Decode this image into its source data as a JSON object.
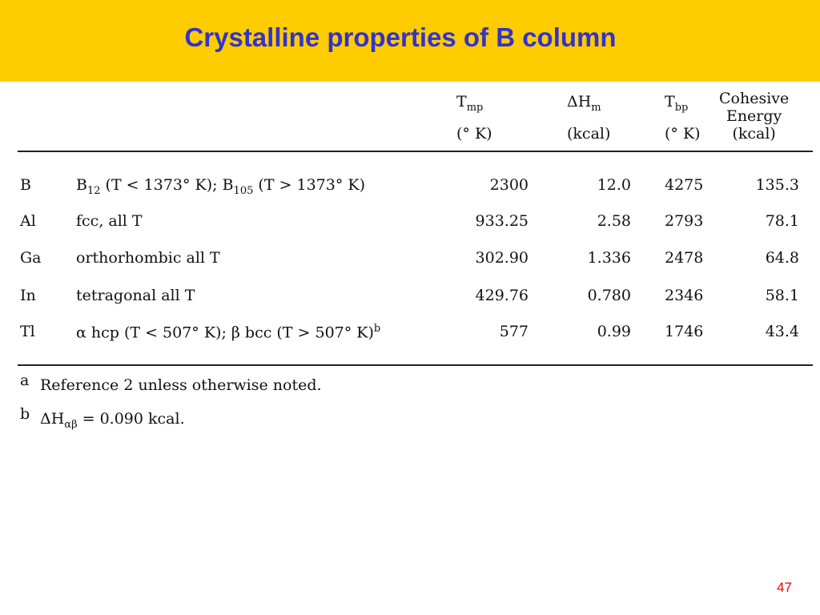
{
  "header": {
    "title": "Crystalline properties of B column"
  },
  "table": {
    "columns": [
      {
        "symbol": "T",
        "sub": "mp",
        "unit": "(° K)"
      },
      {
        "symbol": "ΔH",
        "sub": "m",
        "unit": "(kcal)"
      },
      {
        "symbol": "T",
        "sub": "bp",
        "unit": "(° K)"
      },
      {
        "lines": [
          "Cohesive",
          "Energy"
        ],
        "unit": "(kcal)"
      }
    ],
    "rows": [
      {
        "element": "B",
        "description": [
          "B",
          {
            "sub": "12"
          },
          " (T < 1373° K); B",
          {
            "sub": "105"
          },
          " (T > 1373° K)"
        ],
        "values": [
          "2300",
          "12.0",
          "4275",
          "135.3"
        ]
      },
      {
        "element": "Al",
        "description": [
          "fcc, all T"
        ],
        "values": [
          "933.25",
          "2.58",
          "2793",
          "78.1"
        ]
      },
      {
        "element": "Ga",
        "description": [
          "orthorhombic all T"
        ],
        "values": [
          "302.90",
          "1.336",
          "2478",
          "64.8"
        ]
      },
      {
        "element": "In",
        "description": [
          "tetragonal all T"
        ],
        "values": [
          "429.76",
          "0.780",
          "2346",
          "58.1"
        ]
      },
      {
        "element": "Tl",
        "description": [
          "α hcp (T < 507° K); β bcc (T > 507° K)",
          {
            "sup": "b"
          }
        ],
        "values": [
          "577",
          "0.99",
          "1746",
          "43.4"
        ]
      }
    ]
  },
  "footnotes": [
    {
      "mark": "a",
      "text": [
        "Reference 2 unless otherwise noted."
      ]
    },
    {
      "mark": "b",
      "text": [
        "ΔH",
        {
          "sub": "αβ"
        },
        " = 0.090 kcal."
      ]
    }
  ],
  "page_number": "47"
}
